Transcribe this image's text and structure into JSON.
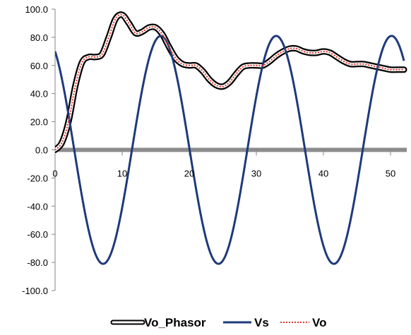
{
  "chart_data": {
    "type": "line",
    "title": "",
    "xlabel": "",
    "ylabel": "",
    "xlim": [
      0,
      52
    ],
    "ylim": [
      -100,
      100
    ],
    "x_ticks": [
      {
        "value": 0,
        "label": "0"
      },
      {
        "value": 10,
        "label": "10"
      },
      {
        "value": 20,
        "label": "20"
      },
      {
        "value": 30,
        "label": "30"
      },
      {
        "value": 40,
        "label": "40"
      },
      {
        "value": 50,
        "label": "50"
      }
    ],
    "y_ticks": [
      {
        "value": 100,
        "label": "100.0"
      },
      {
        "value": 80,
        "label": "80.0"
      },
      {
        "value": 60,
        "label": "60.0"
      },
      {
        "value": 40,
        "label": "40.0"
      },
      {
        "value": 20,
        "label": "20.0"
      },
      {
        "value": 0,
        "label": "0.0"
      },
      {
        "value": -20,
        "label": "-20.0"
      },
      {
        "value": -40,
        "label": "-40.0"
      },
      {
        "value": -60,
        "label": "-60.0"
      },
      {
        "value": -80,
        "label": "-80.0"
      },
      {
        "value": -100,
        "label": "-100.0"
      }
    ],
    "grid": false,
    "legend_position": "bottom",
    "series": [
      {
        "name": "Vo_Phasor",
        "style": "black-outline",
        "color": "#000000",
        "x": [
          0,
          1,
          2,
          3,
          4,
          5,
          6,
          7,
          8,
          9,
          10,
          11,
          12,
          13,
          14,
          15,
          16,
          17,
          18,
          19,
          20,
          21,
          22,
          23,
          24,
          25,
          26,
          27,
          28,
          29,
          30,
          31,
          32,
          33,
          34,
          35,
          36,
          37,
          38,
          39,
          40,
          41,
          42,
          43,
          44,
          45,
          46,
          47,
          48,
          49,
          50,
          51,
          52
        ],
        "y": [
          0,
          5,
          20,
          45,
          62,
          66,
          66,
          68,
          80,
          93,
          96,
          90,
          83,
          84,
          87,
          87,
          82,
          73,
          65,
          61,
          60,
          60,
          56,
          50,
          46,
          45,
          48,
          54,
          59,
          60,
          60,
          60,
          63,
          67,
          70,
          72,
          72,
          70,
          69,
          69,
          70,
          69,
          66,
          63,
          61,
          61,
          61,
          60,
          59,
          58,
          57,
          57,
          57
        ]
      },
      {
        "name": "Vs",
        "style": "solid",
        "color": "#1f3a7a",
        "amplitude": 81,
        "period": 17.2,
        "phase_offset": 70,
        "x_start": 0,
        "x_end": 52
      },
      {
        "name": "Vo",
        "style": "dotted",
        "color": "#e8332a",
        "x": [
          0,
          1,
          2,
          3,
          4,
          5,
          6,
          7,
          8,
          9,
          10,
          11,
          12,
          13,
          14,
          15,
          16,
          17,
          18,
          19,
          20,
          21,
          22,
          23,
          24,
          25,
          26,
          27,
          28,
          29,
          30,
          31,
          32,
          33,
          34,
          35,
          36,
          37,
          38,
          39,
          40,
          41,
          42,
          43,
          44,
          45,
          46,
          47,
          48,
          49,
          50,
          51,
          52
        ],
        "y": [
          0,
          5,
          20,
          45,
          62,
          66,
          66,
          68,
          80,
          93,
          96,
          90,
          83,
          84,
          87,
          87,
          82,
          73,
          65,
          61,
          60,
          60,
          56,
          50,
          46,
          45,
          48,
          54,
          59,
          60,
          60,
          60,
          63,
          67,
          70,
          72,
          72,
          70,
          69,
          69,
          70,
          69,
          66,
          63,
          61,
          61,
          61,
          60,
          59,
          58,
          57,
          57,
          57
        ]
      }
    ]
  }
}
